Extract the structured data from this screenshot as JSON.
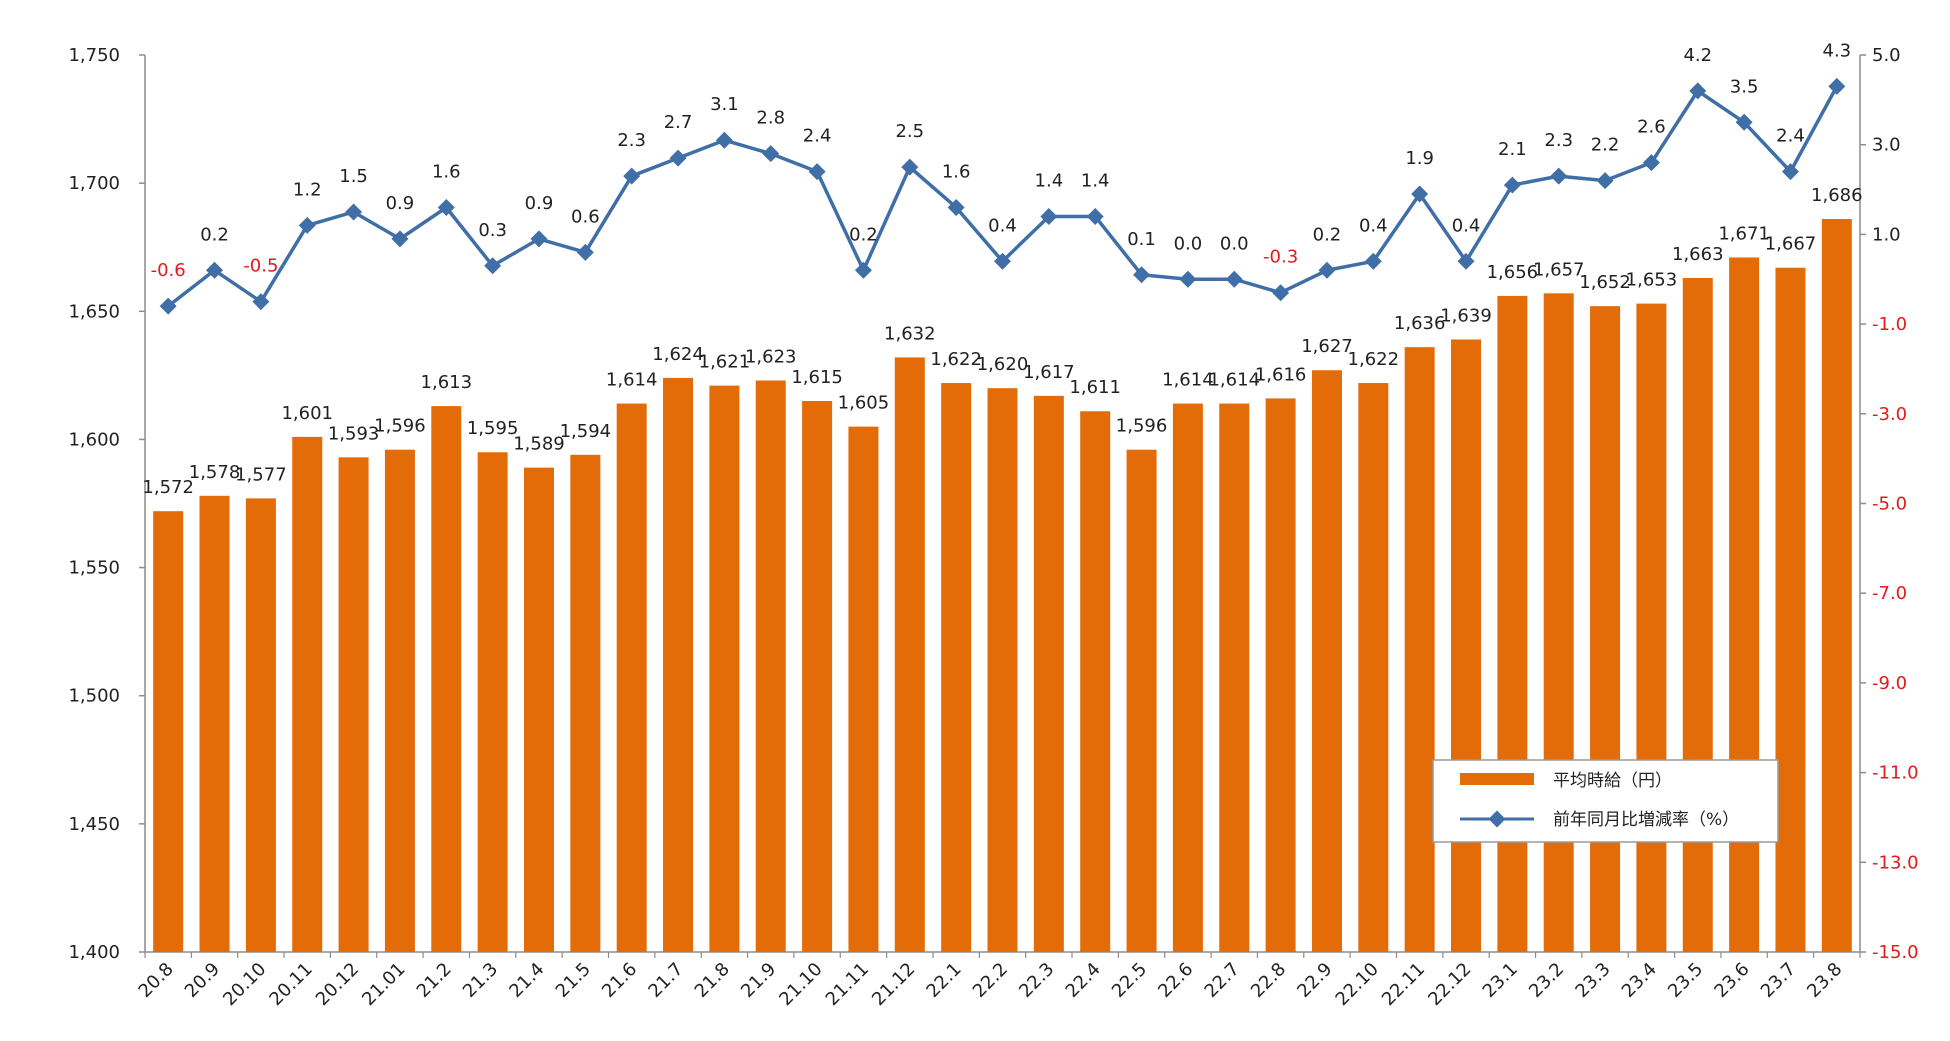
{
  "chart_data": {
    "type": "bar",
    "categories": [
      "20.8",
      "20.9",
      "20.10",
      "20.11",
      "20.12",
      "21.01",
      "21.2",
      "21.3",
      "21.4",
      "21.5",
      "21.6",
      "21.7",
      "21.8",
      "21.9",
      "21.10",
      "21.11",
      "21.12",
      "22.1",
      "22.2",
      "22.3",
      "22.4",
      "22.5",
      "22.6",
      "22.7",
      "22.8",
      "22.9",
      "22.10",
      "22.11",
      "22.12",
      "23.1",
      "23.2",
      "23.3",
      "23.4",
      "23.5",
      "23.6",
      "23.7",
      "23.8"
    ],
    "series": [
      {
        "name": "平均時給（円）",
        "type": "bar",
        "axis": "left",
        "color": "#E36C09",
        "values": [
          1572,
          1578,
          1577,
          1601,
          1593,
          1596,
          1613,
          1595,
          1589,
          1594,
          1614,
          1624,
          1621,
          1623,
          1615,
          1605,
          1632,
          1622,
          1620,
          1617,
          1611,
          1596,
          1614,
          1614,
          1616,
          1627,
          1622,
          1636,
          1639,
          1656,
          1657,
          1652,
          1653,
          1663,
          1671,
          1667,
          1686
        ],
        "labels": [
          "1,572",
          "1,578",
          "1,577",
          "1,601",
          "1,593",
          "1,596",
          "1,613",
          "1,595",
          "1,589",
          "1,594",
          "1,614",
          "1,624",
          "1,621",
          "1,623",
          "1,615",
          "1,605",
          "1,632",
          "1,622",
          "1,620",
          "1,617",
          "1,611",
          "1,596",
          "1,614",
          "1,614",
          "1,616",
          "1,627",
          "1,622",
          "1,636",
          "1,639",
          "1,656",
          "1,657",
          "1,652",
          "1,653",
          "1,663",
          "1,671",
          "1,667",
          "1,686"
        ]
      },
      {
        "name": "前年同月比増減率（%）",
        "type": "line",
        "axis": "right",
        "color": "#3F6FA6",
        "values": [
          -0.6,
          0.2,
          -0.5,
          1.2,
          1.5,
          0.9,
          1.6,
          0.3,
          0.9,
          0.6,
          2.3,
          2.7,
          3.1,
          2.8,
          2.4,
          0.2,
          2.5,
          1.6,
          0.4,
          1.4,
          1.4,
          0.1,
          0.0,
          0.0,
          -0.3,
          0.2,
          0.4,
          1.9,
          0.4,
          2.1,
          2.3,
          2.2,
          2.6,
          4.2,
          3.5,
          2.4,
          4.3
        ],
        "labels": [
          "-0.6",
          "0.2",
          "-0.5",
          "1.2",
          "1.5",
          "0.9",
          "1.6",
          "0.3",
          "0.9",
          "0.6",
          "2.3",
          "2.7",
          "3.1",
          "2.8",
          "2.4",
          "0.2",
          "2.5",
          "1.6",
          "0.4",
          "1.4",
          "1.4",
          "0.1",
          "0.0",
          "0.0",
          "-0.3",
          "0.2",
          "0.4",
          "1.9",
          "0.4",
          "2.1",
          "2.3",
          "2.2",
          "2.6",
          "4.2",
          "3.5",
          "2.4",
          "4.3"
        ]
      }
    ],
    "y_left": {
      "range": [
        1400,
        1750
      ],
      "ticks": [
        "1,400",
        "1,450",
        "1,500",
        "1,550",
        "1,600",
        "1,650",
        "1,700",
        "1,750"
      ]
    },
    "y_right": {
      "range": [
        -15,
        5
      ],
      "ticks": [
        "5.0",
        "3.0",
        "1.0",
        "-1.0",
        "-3.0",
        "-5.0",
        "-7.0",
        "-9.0",
        "-11.0",
        "-13.0",
        "-15.0"
      ],
      "negative_color": "#E31A1C"
    },
    "grid": false,
    "legend_position": "bottom-right",
    "negative_label_color": "#E31A1C"
  }
}
